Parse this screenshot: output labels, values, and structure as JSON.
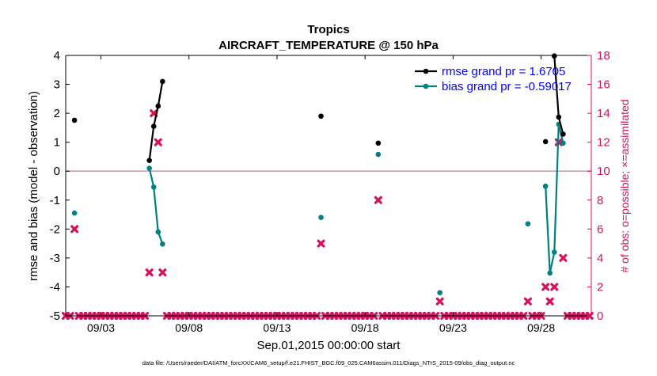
{
  "chart_data": {
    "type": "scatter",
    "title": "Tropics",
    "subtitle": "AIRCRAFT_TEMPERATURE @ 150 hPa",
    "xlabel": "Sep.01,2015 00:00:00 start",
    "ylabel": "rmse and bias (model - observation)",
    "y2label": "# of obs: o=possible; ×=assimilated",
    "footnote": "data file: /Users/raeder/DAI/ATM_forcXX/CAM6_setup/f.e21.FHIST_BGC.f09_025.CAM6assim.011/Diags_NTrS_2015-09/obs_diag_output.nc",
    "xlim": [
      1.0,
      30.85
    ],
    "ylim": [
      -5,
      4
    ],
    "y2lim": [
      0,
      18
    ],
    "x_ticks": [
      {
        "value": 3,
        "label": "09/03"
      },
      {
        "value": 8,
        "label": "09/08"
      },
      {
        "value": 13,
        "label": "09/13"
      },
      {
        "value": 18,
        "label": "09/18"
      },
      {
        "value": 23,
        "label": "09/23"
      },
      {
        "value": 28,
        "label": "09/28"
      }
    ],
    "y_ticks": [
      "-5",
      "-4",
      "-3",
      "-2",
      "-1",
      "0",
      "1",
      "2",
      "3",
      "4"
    ],
    "y2_ticks": [
      "0",
      "2",
      "4",
      "6",
      "8",
      "10",
      "12",
      "14",
      "16",
      "18"
    ],
    "zero_line": 0,
    "legend": {
      "placement": "top-right",
      "entries": [
        {
          "label": "rmse grand pr = 1.6705",
          "color": "#000000"
        },
        {
          "label": "bias grand pr = -0.59017",
          "color": "#008080"
        }
      ]
    },
    "colors": {
      "rmse": "#000000",
      "bias": "#008080",
      "obs": "#d6115e",
      "zero_line": "#c8a2aa",
      "label_blue": "#0000ff",
      "right_axis": "#d6115e"
    },
    "rmse_series": [
      {
        "x": 1.5,
        "y": 1.76
      },
      {
        "x": 5.75,
        "y": 0.37
      },
      {
        "x": 6.0,
        "y": 1.55
      },
      {
        "x": 6.25,
        "y": 2.25
      },
      {
        "x": 6.5,
        "y": 3.1
      },
      {
        "x": 15.5,
        "y": 1.9
      },
      {
        "x": 18.75,
        "y": 0.97
      },
      {
        "x": 28.25,
        "y": 1.02
      },
      {
        "x": 28.75,
        "y": 3.98
      },
      {
        "x": 29.0,
        "y": 1.87
      },
      {
        "x": 29.25,
        "y": 1.28
      }
    ],
    "bias_series": [
      {
        "x": 1.5,
        "y": -1.45
      },
      {
        "x": 5.75,
        "y": 0.1
      },
      {
        "x": 6.0,
        "y": -0.55
      },
      {
        "x": 6.25,
        "y": -2.1
      },
      {
        "x": 6.5,
        "y": -2.52
      },
      {
        "x": 15.5,
        "y": -1.6
      },
      {
        "x": 18.75,
        "y": 0.58
      },
      {
        "x": 22.25,
        "y": -4.2
      },
      {
        "x": 27.25,
        "y": -1.82
      },
      {
        "x": 28.25,
        "y": -0.52
      },
      {
        "x": 28.5,
        "y": -3.52
      },
      {
        "x": 28.75,
        "y": -2.8
      },
      {
        "x": 29.0,
        "y": 1.62
      },
      {
        "x": 29.25,
        "y": 0.97
      }
    ],
    "obs_assimilated": [
      {
        "x": 1.5,
        "n": 6
      },
      {
        "x": 5.75,
        "n": 3
      },
      {
        "x": 6.0,
        "n": 14
      },
      {
        "x": 6.25,
        "n": 12
      },
      {
        "x": 6.5,
        "n": 3
      },
      {
        "x": 15.5,
        "n": 5
      },
      {
        "x": 18.75,
        "n": 8
      },
      {
        "x": 22.25,
        "n": 1
      },
      {
        "x": 27.25,
        "n": 1
      },
      {
        "x": 28.25,
        "n": 2
      },
      {
        "x": 28.5,
        "n": 1
      },
      {
        "x": 28.75,
        "n": 2
      },
      {
        "x": 29.0,
        "n": 12
      },
      {
        "x": 29.25,
        "n": 4
      }
    ]
  }
}
